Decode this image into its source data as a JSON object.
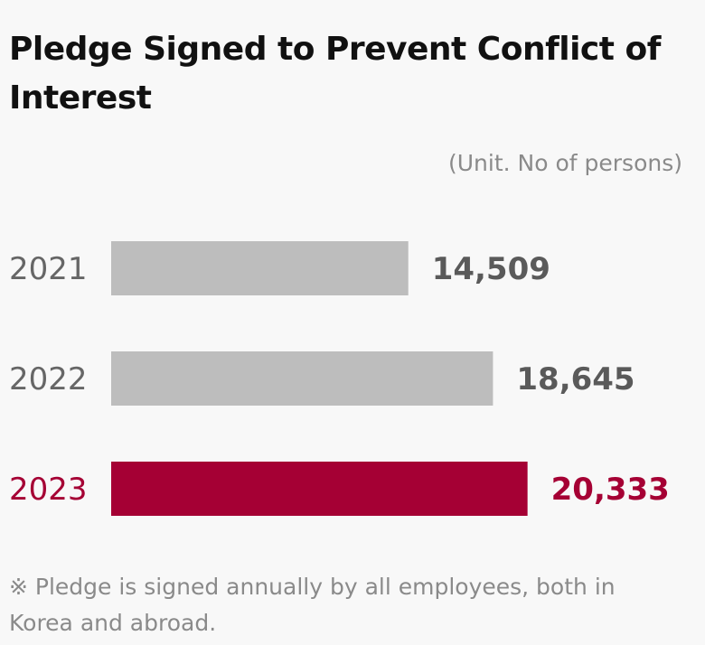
{
  "chart_data": {
    "type": "bar",
    "orientation": "horizontal",
    "title": "Pledge Signed to Prevent Conflict of Interest",
    "unit_label": "(Unit. No of persons)",
    "categories": [
      "2021",
      "2022",
      "2023"
    ],
    "values": [
      14509,
      18645,
      20333
    ],
    "value_labels": [
      "14,509",
      "18,645",
      "20,333"
    ],
    "xlim": [
      0,
      29000
    ],
    "grid": false,
    "highlight_index": 2,
    "colors": {
      "bar_default": "#bdbdbd",
      "bar_highlight": "#a50034",
      "label_default": "#666666",
      "value_default": "#5a5a5a",
      "highlight_text": "#a50034"
    },
    "note": "※ Pledge is signed annually by all employees, both in Korea and abroad."
  }
}
